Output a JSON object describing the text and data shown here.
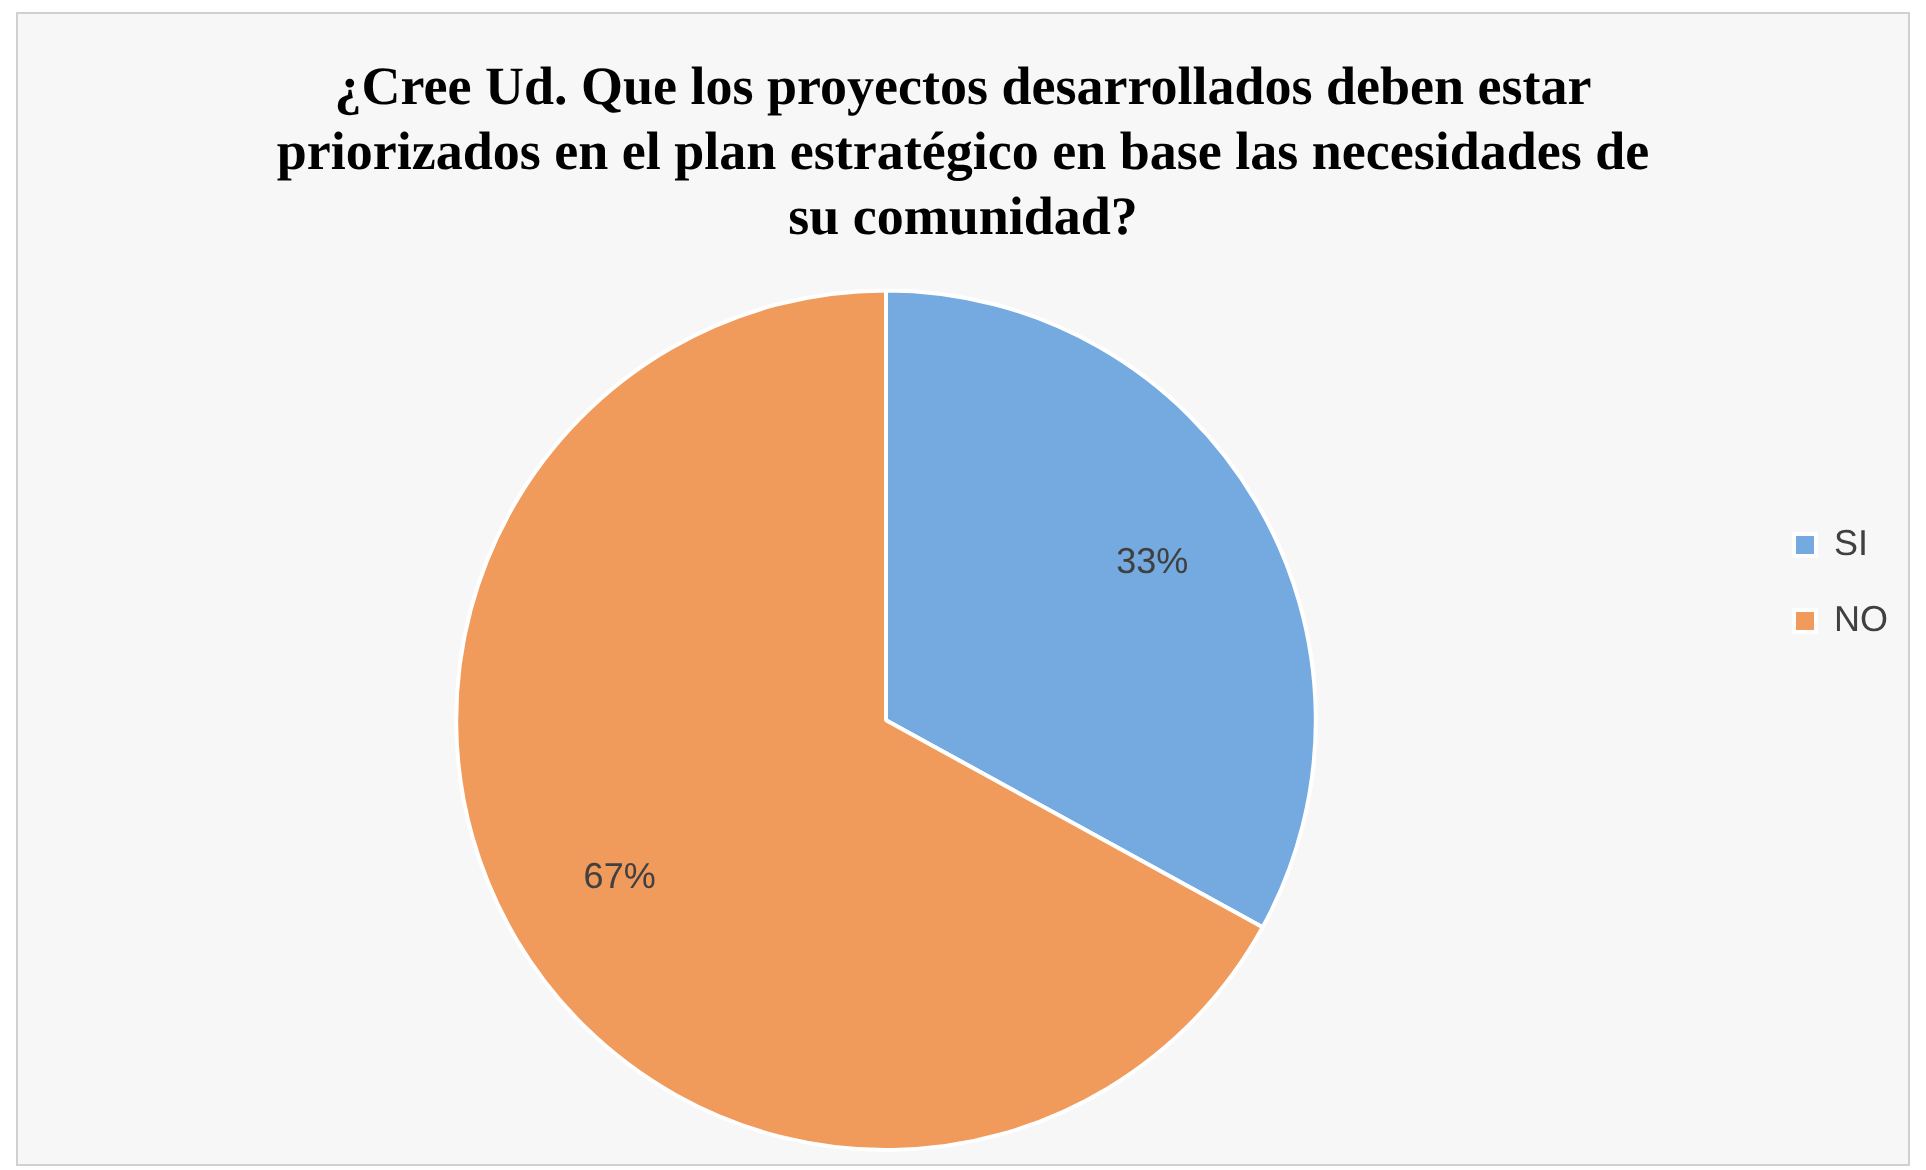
{
  "chart_data": {
    "type": "pie",
    "title": "¿Cree Ud. Que los proyectos desarrollados deben estar priorizados en el plan estratégico en base las necesidades de su comunidad?",
    "categories": [
      "SI",
      "NO"
    ],
    "values": [
      33,
      67
    ],
    "colors": [
      "#74aadf",
      "#f09a5c"
    ],
    "value_labels": [
      "33%",
      "67%"
    ],
    "legend": "right"
  }
}
